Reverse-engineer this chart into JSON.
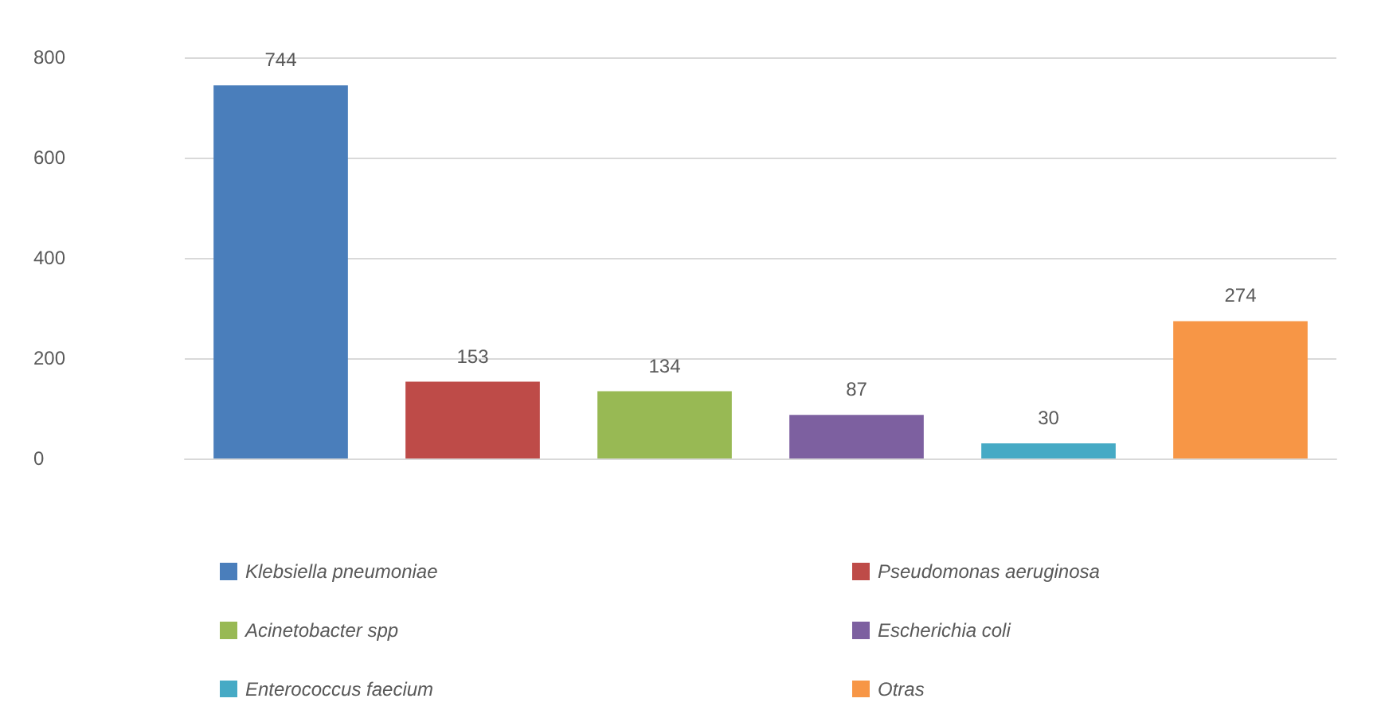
{
  "chart_data": {
    "type": "bar",
    "categories": [
      null,
      null,
      null,
      null,
      null,
      null
    ],
    "stacked": true,
    "series": [
      {
        "name": "Klebsiella pneumoniae",
        "color": "#4a7ebb",
        "values": [
          744,
          null,
          null,
          null,
          null,
          null
        ]
      },
      {
        "name": "Pseudomonas aeruginosa",
        "color": "#be4b48",
        "values": [
          null,
          153,
          null,
          null,
          null,
          null
        ]
      },
      {
        "name": "Acinetobacter spp",
        "color": "#98b954",
        "values": [
          null,
          null,
          134,
          null,
          null,
          null
        ]
      },
      {
        "name": "Escherichia coli",
        "color": "#7d60a0",
        "values": [
          null,
          null,
          null,
          87,
          null,
          null
        ]
      },
      {
        "name": "Enterococcus faecium",
        "color": "#46aac5",
        "values": [
          null,
          null,
          null,
          null,
          30,
          null
        ]
      },
      {
        "name": "Otras",
        "color": "#f79646",
        "values": [
          null,
          null,
          null,
          null,
          null,
          274
        ]
      }
    ],
    "ylim": [
      0,
      800
    ],
    "yticks": [
      0,
      200,
      400,
      600,
      800
    ],
    "grid": "y",
    "legend": "bottom",
    "data_labels": true,
    "tick_labels": "y"
  }
}
